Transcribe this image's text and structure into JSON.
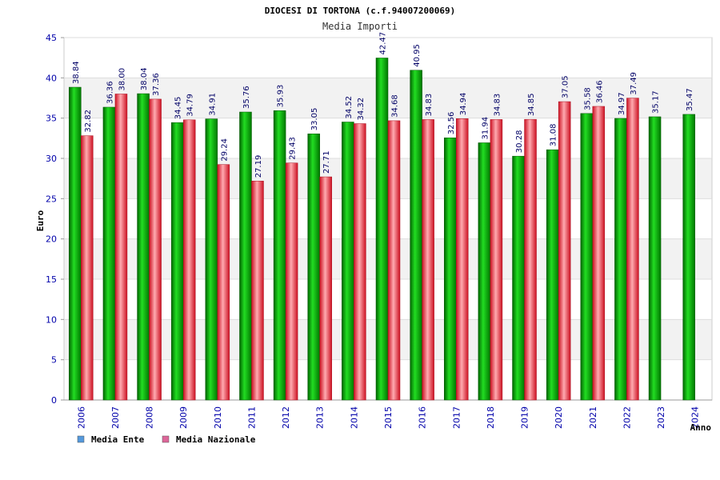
{
  "chart_data": {
    "type": "bar",
    "title": "DIOCESI DI TORTONA (c.f.94007200069)",
    "subtitle": "Media Importi",
    "xlabel": "Anno",
    "ylabel": "Euro",
    "ylim": [
      0,
      45
    ],
    "yticks": [
      "0",
      "5",
      "10",
      "15",
      "20",
      "25",
      "30",
      "35",
      "40",
      "45"
    ],
    "categories": [
      "2006",
      "2007",
      "2008",
      "2009",
      "2010",
      "2011",
      "2012",
      "2013",
      "2014",
      "2015",
      "2016",
      "2017",
      "2018",
      "2019",
      "2020",
      "2021",
      "2022",
      "2023",
      "2024"
    ],
    "series": [
      {
        "name": "Media Ente",
        "color": "#00aa00",
        "values": [
          38.84,
          36.36,
          38.04,
          34.45,
          34.91,
          35.76,
          35.93,
          33.05,
          34.52,
          42.47,
          40.95,
          32.56,
          31.94,
          30.28,
          31.08,
          35.58,
          34.97,
          35.17,
          35.47
        ],
        "labels": [
          "38.84",
          "36.36",
          "38.04",
          "34.45",
          "34.91",
          "35.76",
          "35.93",
          "33.05",
          "34.52",
          "42.47",
          "40.95",
          "32.56",
          "31.94",
          "30.28",
          "31.08",
          "35.58",
          "34.97",
          "35.17",
          "35.47"
        ]
      },
      {
        "name": "Media Nazionale",
        "color": "#e8283c",
        "values": [
          32.82,
          38.0,
          37.36,
          34.79,
          29.24,
          27.19,
          29.43,
          27.71,
          34.32,
          34.68,
          34.83,
          34.94,
          34.83,
          34.85,
          37.05,
          36.46,
          37.49,
          null,
          null
        ],
        "labels": [
          "32.82",
          "38.00",
          "37.36",
          "34.79",
          "29.24",
          "27.19",
          "29.43",
          "27.71",
          "34.32",
          "34.68",
          "34.83",
          "34.94",
          "34.83",
          "34.85",
          "37.05",
          "36.46",
          "37.49",
          null,
          null
        ]
      }
    ],
    "legend": [
      {
        "name": "Media Ente",
        "color": "#5599dd"
      },
      {
        "name": "Media Nazionale",
        "color": "#dd6699"
      }
    ],
    "grid": true
  }
}
